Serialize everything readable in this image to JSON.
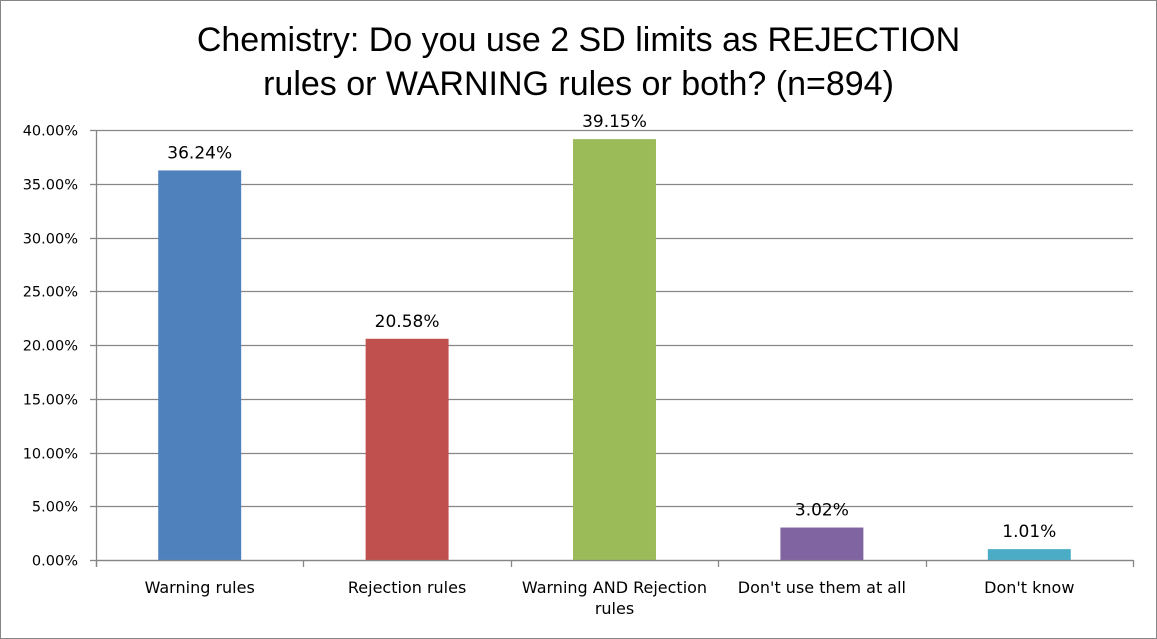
{
  "chart_data": {
    "type": "bar",
    "title_lines": [
      "Chemistry: Do you use 2 SD limits as REJECTION",
      "rules or WARNING rules or both? (n=894)"
    ],
    "categories": [
      "Warning rules",
      "Rejection rules",
      "Warning AND Rejection rules",
      "Don't use them at all",
      "Don't know"
    ],
    "category_label_lines": [
      [
        "Warning rules"
      ],
      [
        "Rejection rules"
      ],
      [
        "Warning AND Rejection",
        "rules"
      ],
      [
        "Don't use them at all"
      ],
      [
        "Don't know"
      ]
    ],
    "values": [
      36.24,
      20.58,
      39.15,
      3.02,
      1.01
    ],
    "data_labels": [
      "36.24%",
      "20.58%",
      "39.15%",
      "3.02%",
      "1.01%"
    ],
    "colors": [
      "#4f81bd",
      "#c0504d",
      "#9bbb59",
      "#8064a2",
      "#4bacc6"
    ],
    "ylim": [
      0,
      40
    ],
    "yticks": [
      "0.00%",
      "5.00%",
      "10.00%",
      "15.00%",
      "20.00%",
      "25.00%",
      "30.00%",
      "35.00%",
      "40.00%"
    ],
    "xlabel": "",
    "ylabel": "",
    "grid": true,
    "legend": "none"
  }
}
